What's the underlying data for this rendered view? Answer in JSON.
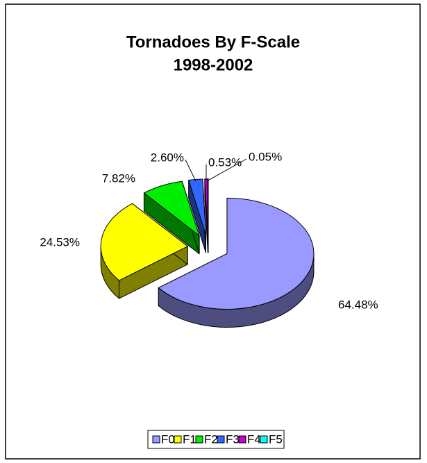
{
  "chart_data": {
    "type": "pie",
    "title": "Tornadoes By F-Scale",
    "subtitle": "1998-2002",
    "categories": [
      "F0",
      "F1",
      "F2",
      "F3",
      "F4",
      "F5"
    ],
    "values": [
      64.48,
      24.53,
      7.82,
      2.6,
      0.53,
      0.05
    ],
    "value_labels": [
      "64.48%",
      "24.53%",
      "7.82%",
      "2.60%",
      "0.53%",
      "0.05%"
    ],
    "colors": [
      "#9999ff",
      "#ffff00",
      "#00ee00",
      "#3366ff",
      "#cc00cc",
      "#00ffff"
    ],
    "legend": "bottom"
  }
}
